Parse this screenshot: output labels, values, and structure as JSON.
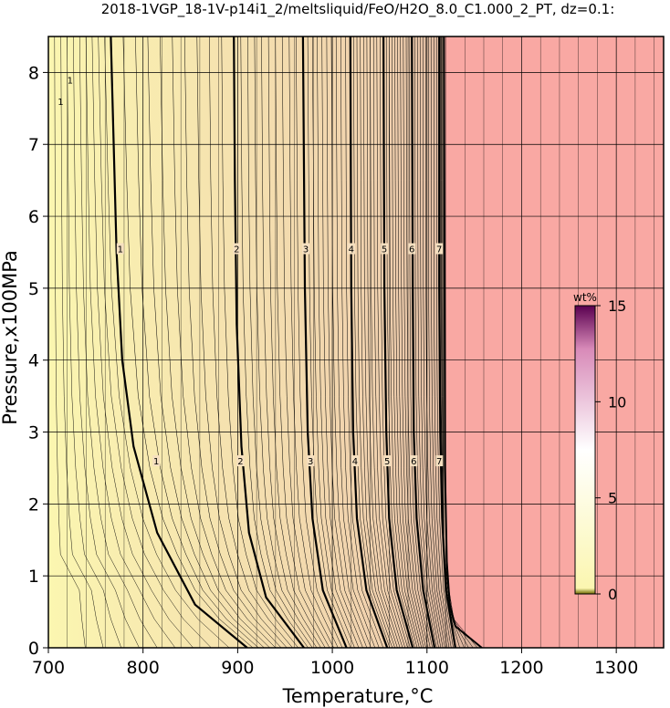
{
  "chart_data": {
    "type": "heatmap",
    "title": "2018-1VGP_18-1V-p14i1_2/meltsliquid/FeO/H2O_8.0_C1.000_2_PT, dz=0.1:",
    "xlabel": "Temperature,°C",
    "ylabel": "Pressure,x100MPa",
    "xlim": [
      700,
      1350
    ],
    "ylim": [
      0,
      8.5
    ],
    "x_ticks": [
      700,
      800,
      900,
      1000,
      1100,
      1200,
      1300
    ],
    "y_ticks": [
      0,
      1,
      2,
      3,
      4,
      5,
      6,
      7,
      8
    ],
    "grid": true,
    "colorbar": {
      "unit": "wt%",
      "range": [
        0,
        15
      ],
      "ticks": [
        0,
        5,
        10,
        15
      ],
      "position": "right-inside"
    },
    "colors": {
      "low": "#fbf6b0",
      "mid": "#f0d0ae",
      "high": "#a86d78",
      "saturated_region": "#f9a8a3",
      "cbar_bottom": "#6e6a00",
      "cbar_mid": "#ffffff",
      "cbar_top": "#5a0050"
    },
    "saturation_boundary": [
      {
        "t": 1158,
        "p": 0.0
      },
      {
        "t": 1130,
        "p": 0.3
      },
      {
        "t": 1124,
        "p": 0.6
      },
      {
        "t": 1121,
        "p": 1.2
      },
      {
        "t": 1119,
        "p": 2.5
      },
      {
        "t": 1118,
        "p": 8.5
      }
    ],
    "major_contours": [
      {
        "label": "1",
        "points": [
          {
            "t": 910,
            "p": 0
          },
          {
            "t": 855,
            "p": 0.6
          },
          {
            "t": 815,
            "p": 1.6
          },
          {
            "t": 790,
            "p": 2.8
          },
          {
            "t": 778,
            "p": 4.0
          },
          {
            "t": 772,
            "p": 5.5
          },
          {
            "t": 768,
            "p": 7.5
          },
          {
            "t": 766,
            "p": 8.5
          }
        ],
        "label_positions": [
          {
            "t": 814,
            "p": 2.6
          },
          {
            "t": 776,
            "p": 5.55
          }
        ]
      },
      {
        "label": "2",
        "points": [
          {
            "t": 970,
            "p": 0
          },
          {
            "t": 930,
            "p": 0.7
          },
          {
            "t": 912,
            "p": 1.6
          },
          {
            "t": 904,
            "p": 2.8
          },
          {
            "t": 899,
            "p": 4.5
          },
          {
            "t": 897,
            "p": 6.5
          },
          {
            "t": 896,
            "p": 8.5
          }
        ],
        "label_positions": [
          {
            "t": 903,
            "p": 2.6
          },
          {
            "t": 899,
            "p": 5.55
          }
        ]
      },
      {
        "label": "3",
        "points": [
          {
            "t": 1015,
            "p": 0
          },
          {
            "t": 990,
            "p": 0.8
          },
          {
            "t": 979,
            "p": 1.8
          },
          {
            "t": 974,
            "p": 3.0
          },
          {
            "t": 971,
            "p": 5.0
          },
          {
            "t": 969,
            "p": 8.5
          }
        ],
        "label_positions": [
          {
            "t": 977,
            "p": 2.6
          },
          {
            "t": 972,
            "p": 5.55
          }
        ]
      },
      {
        "label": "4",
        "points": [
          {
            "t": 1058,
            "p": 0
          },
          {
            "t": 1036,
            "p": 0.8
          },
          {
            "t": 1026,
            "p": 1.8
          },
          {
            "t": 1022,
            "p": 3.0
          },
          {
            "t": 1020,
            "p": 5.0
          },
          {
            "t": 1019,
            "p": 8.5
          }
        ],
        "label_positions": [
          {
            "t": 1024,
            "p": 2.6
          },
          {
            "t": 1020,
            "p": 5.55
          }
        ]
      },
      {
        "label": "5",
        "points": [
          {
            "t": 1085,
            "p": 0
          },
          {
            "t": 1068,
            "p": 0.8
          },
          {
            "t": 1060,
            "p": 1.8
          },
          {
            "t": 1057,
            "p": 3.0
          },
          {
            "t": 1055,
            "p": 5.0
          },
          {
            "t": 1054,
            "p": 8.5
          }
        ],
        "label_positions": [
          {
            "t": 1058,
            "p": 2.6
          },
          {
            "t": 1055,
            "p": 5.55
          }
        ]
      },
      {
        "label": "6",
        "points": [
          {
            "t": 1108,
            "p": 0
          },
          {
            "t": 1096,
            "p": 0.8
          },
          {
            "t": 1089,
            "p": 1.8
          },
          {
            "t": 1086,
            "p": 3.0
          },
          {
            "t": 1085,
            "p": 5.0
          },
          {
            "t": 1084,
            "p": 8.5
          }
        ],
        "label_positions": [
          {
            "t": 1086,
            "p": 2.6
          },
          {
            "t": 1084,
            "p": 5.55
          }
        ]
      },
      {
        "label": "7",
        "points": [
          {
            "t": 1130,
            "p": 0
          },
          {
            "t": 1120,
            "p": 0.8
          },
          {
            "t": 1116,
            "p": 1.8
          },
          {
            "t": 1114,
            "p": 3.0
          },
          {
            "t": 1113,
            "p": 5.0
          },
          {
            "t": 1113,
            "p": 8.5
          }
        ],
        "label_positions": [
          {
            "t": 1113,
            "p": 2.6
          },
          {
            "t": 1113,
            "p": 5.55
          }
        ]
      }
    ],
    "top_left_labels": [
      {
        "label": "1",
        "t": 723,
        "p": 7.9
      },
      {
        "label": "1",
        "t": 713,
        "p": 7.6
      }
    ]
  }
}
